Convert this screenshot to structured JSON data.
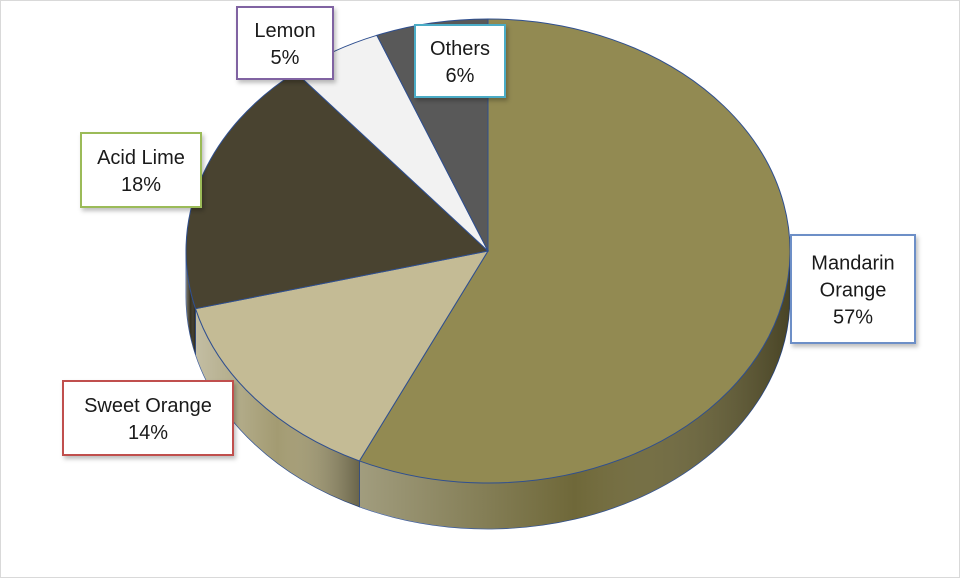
{
  "chart_data": {
    "type": "pie",
    "title": "",
    "slices": [
      {
        "label": "Mandarin Orange",
        "lines": [
          "Mandarin",
          "Orange"
        ],
        "value": 57,
        "value_label": "57%",
        "color": "#928a52",
        "side_color": "#6f6839",
        "box_border": "#6d8fc7"
      },
      {
        "label": "Sweet Orange",
        "lines": [
          "Sweet Orange"
        ],
        "value": 14,
        "value_label": "14%",
        "color": "#c4bb95",
        "side_color": "#a39b72",
        "box_border": "#c0504d"
      },
      {
        "label": "Acid Lime",
        "lines": [
          "Acid Lime"
        ],
        "value": 18,
        "value_label": "18%",
        "color": "#494330",
        "side_color": "#35301f",
        "box_border": "#9bbb59"
      },
      {
        "label": "Lemon",
        "lines": [
          "Lemon"
        ],
        "value": 5,
        "value_label": "5%",
        "color": "#f2f2f2",
        "side_color": "#d6d6d6",
        "box_border": "#8064a2"
      },
      {
        "label": "Others",
        "lines": [
          "Others"
        ],
        "value": 6,
        "value_label": "6%",
        "color": "#595959",
        "side_color": "#3f3f3f",
        "box_border": "#4bacc6"
      }
    ],
    "start": "12 o'clock",
    "direction": "clockwise",
    "style": "3d",
    "legend": "none",
    "data_labels": "callout boxes"
  }
}
